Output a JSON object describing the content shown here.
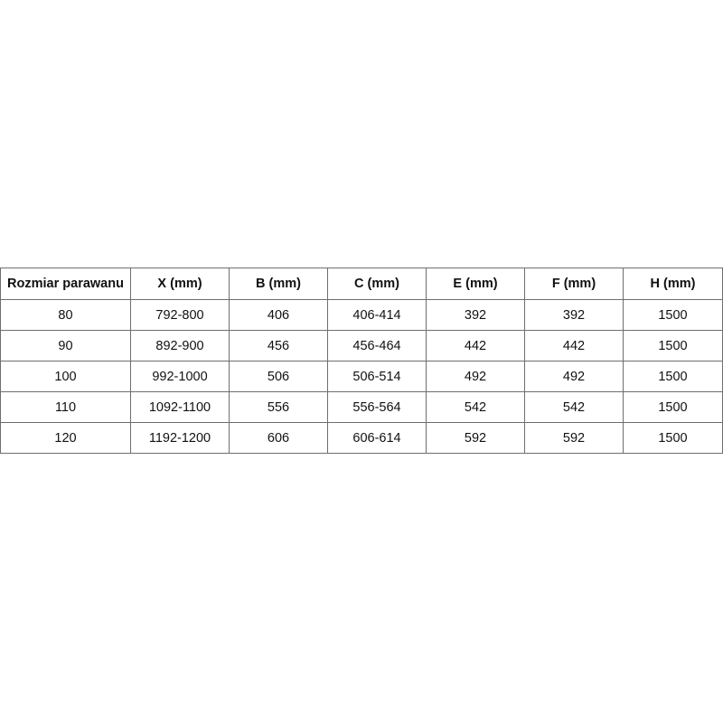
{
  "table": {
    "headers": [
      "Rozmiar parawanu",
      "X (mm)",
      "B (mm)",
      "C (mm)",
      "E (mm)",
      "F (mm)",
      "H (mm)"
    ],
    "rows": [
      [
        "80",
        "792-800",
        "406",
        "406-414",
        "392",
        "392",
        "1500"
      ],
      [
        "90",
        "892-900",
        "456",
        "456-464",
        "442",
        "442",
        "1500"
      ],
      [
        "100",
        "992-1000",
        "506",
        "506-514",
        "492",
        "492",
        "1500"
      ],
      [
        "110",
        "1092-1100",
        "556",
        "556-564",
        "542",
        "542",
        "1500"
      ],
      [
        "120",
        "1192-1200",
        "606",
        "606-614",
        "592",
        "592",
        "1500"
      ]
    ]
  }
}
